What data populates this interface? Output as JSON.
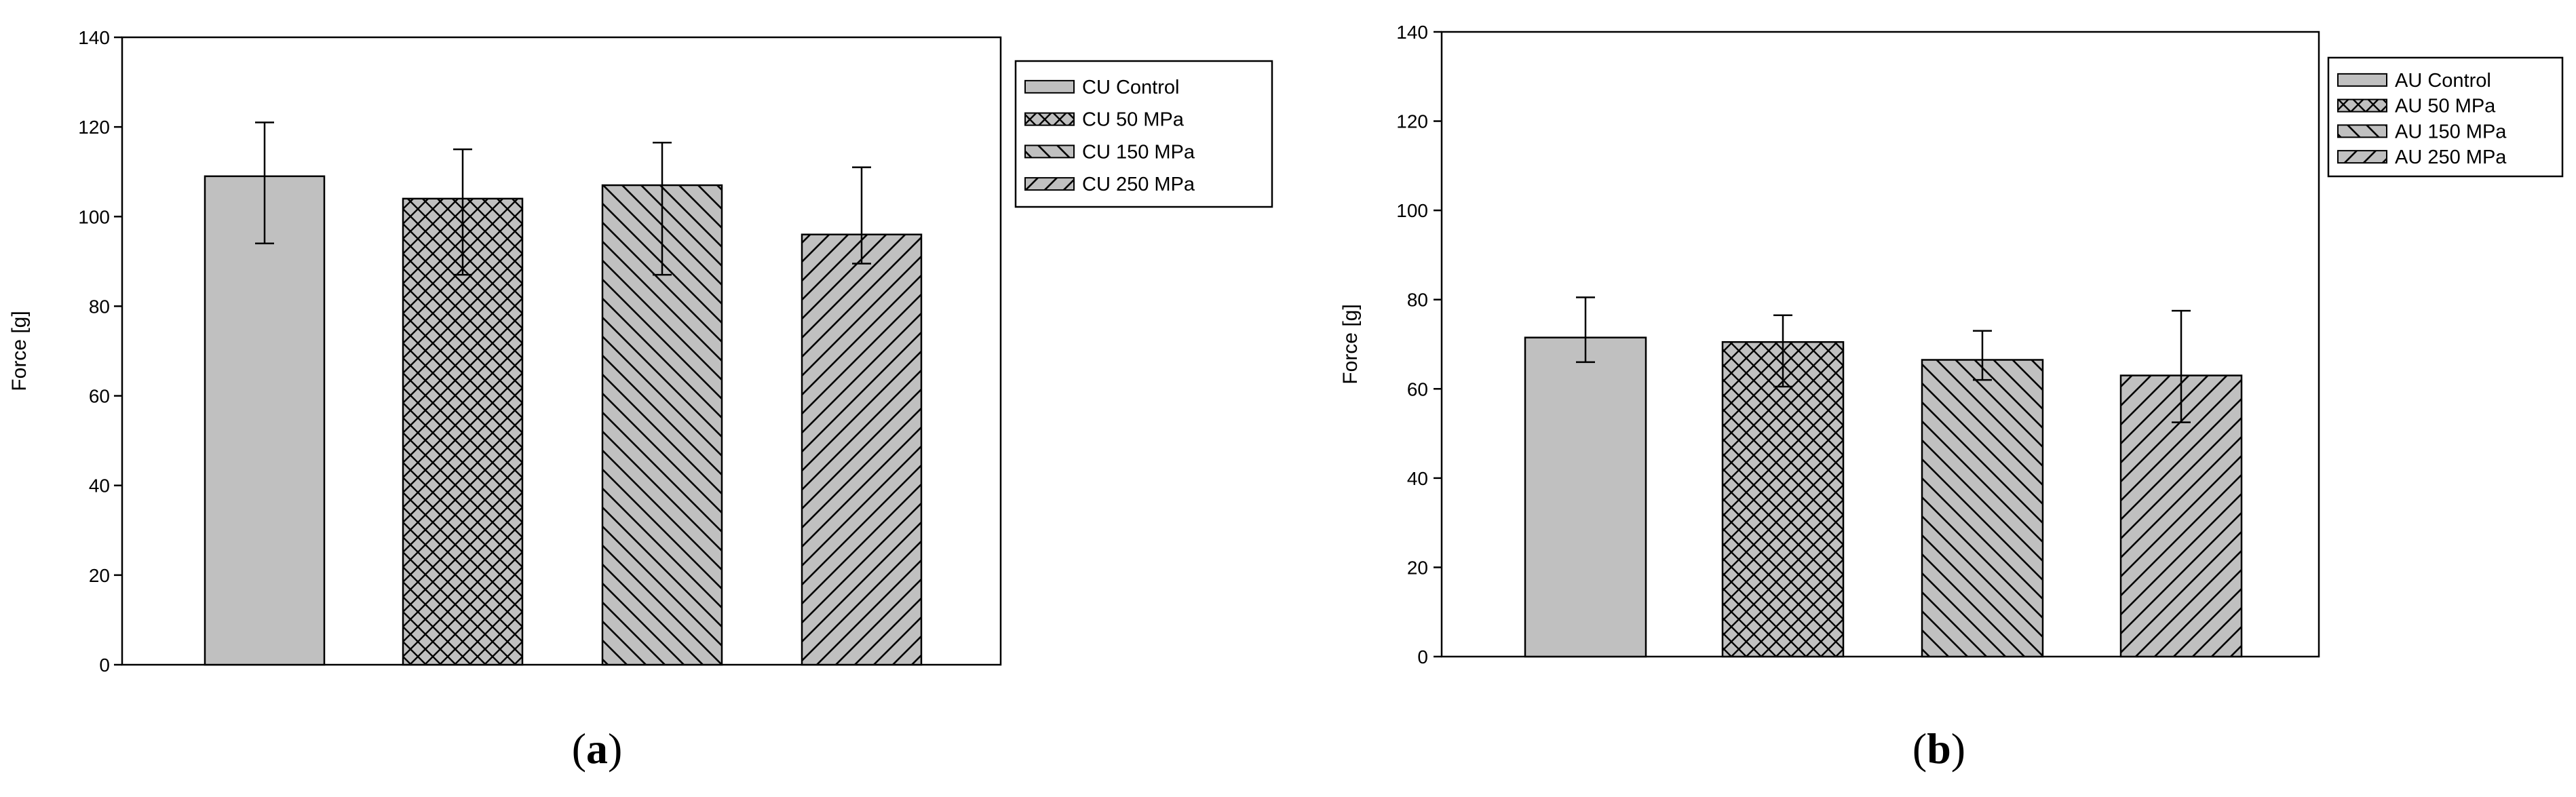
{
  "colors": {
    "bar_fill": "#c0c0c0",
    "hatch": "#000000",
    "axis": "#000000",
    "background": "#ffffff"
  },
  "chart_data": [
    {
      "type": "bar",
      "panel_label": "a",
      "ylabel": "Force [g]",
      "xlabel": "",
      "ylim": [
        0,
        140
      ],
      "yticks": [
        0,
        20,
        40,
        60,
        80,
        100,
        120,
        140
      ],
      "grid": false,
      "legend_position": "right",
      "categories": [
        "CU Control",
        "CU 50 MPa",
        "CU 150 MPa",
        "CU 250 MPa"
      ],
      "series": [
        {
          "name": "CU Control",
          "pattern": "solid",
          "value": 109,
          "err_low": 94,
          "err_high": 121
        },
        {
          "name": "CU 50 MPa",
          "pattern": "crosshatch",
          "value": 104,
          "err_low": 87,
          "err_high": 115
        },
        {
          "name": "CU 150 MPa",
          "pattern": "backslash",
          "value": 107,
          "err_low": 87,
          "err_high": 116.5
        },
        {
          "name": "CU 250 MPa",
          "pattern": "slash",
          "value": 96,
          "err_low": 89.5,
          "err_high": 111
        }
      ]
    },
    {
      "type": "bar",
      "panel_label": "b",
      "ylabel": "Force [g]",
      "xlabel": "",
      "ylim": [
        0,
        140
      ],
      "yticks": [
        0,
        20,
        40,
        60,
        80,
        100,
        120,
        140
      ],
      "grid": false,
      "legend_position": "right",
      "categories": [
        "AU Control",
        "AU 50 MPa",
        "AU 150 MPa",
        "AU 250 MPa"
      ],
      "series": [
        {
          "name": "AU Control",
          "pattern": "solid",
          "value": 71.5,
          "err_low": 66,
          "err_high": 80.5
        },
        {
          "name": "AU 50 MPa",
          "pattern": "crosshatch",
          "value": 70.5,
          "err_low": 60.5,
          "err_high": 76.5
        },
        {
          "name": "AU 150 MPa",
          "pattern": "backslash",
          "value": 66.5,
          "err_low": 62,
          "err_high": 73
        },
        {
          "name": "AU 250 MPa",
          "pattern": "slash",
          "value": 63,
          "err_low": 52.5,
          "err_high": 77.5
        }
      ]
    }
  ]
}
